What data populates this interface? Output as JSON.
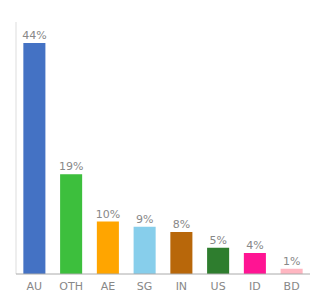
{
  "chart_data": {
    "type": "bar",
    "categories": [
      "AU",
      "OTH",
      "AE",
      "SG",
      "IN",
      "US",
      "ID",
      "BD"
    ],
    "values": [
      44,
      19,
      10,
      9,
      8,
      5,
      4,
      1
    ],
    "value_labels": [
      "44%",
      "19%",
      "10%",
      "9%",
      "8%",
      "5%",
      "4%",
      "1%"
    ],
    "colors": [
      "#4472C4",
      "#3DBF3D",
      "#FFA500",
      "#87CEEB",
      "#B8670A",
      "#2E7D2E",
      "#FF1493",
      "#FFB6C1"
    ],
    "ylim": [
      0,
      48
    ],
    "data_labels": true,
    "tick_labels": "x"
  }
}
